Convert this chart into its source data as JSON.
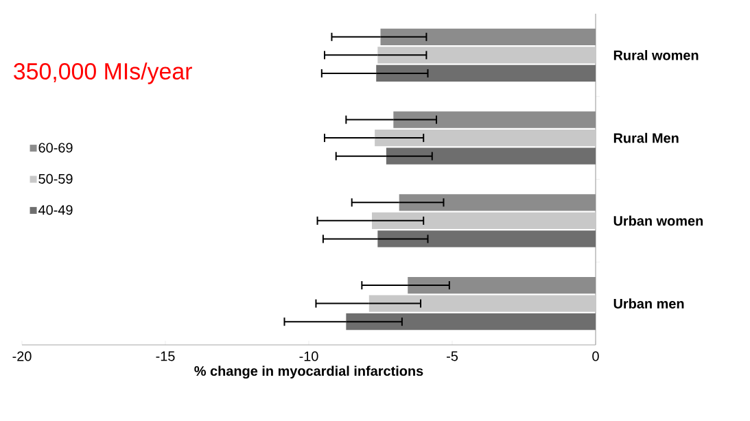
{
  "chart_data": {
    "type": "bar",
    "orientation": "horizontal",
    "categories": [
      "Rural women",
      "Rural Men",
      "Urban women",
      "Urban men"
    ],
    "series": [
      {
        "name": "60-69",
        "color": "#8c8c8c",
        "values": [
          -7.5,
          -7.05,
          -6.85,
          -6.55
        ],
        "errors": [
          [
            -9.2,
            -5.9
          ],
          [
            -8.7,
            -5.55
          ],
          [
            -8.5,
            -5.3
          ],
          [
            -8.15,
            -5.1
          ]
        ]
      },
      {
        "name": "50-59",
        "color": "#c8c8c8",
        "values": [
          -7.6,
          -7.7,
          -7.8,
          -7.9
        ],
        "errors": [
          [
            -9.45,
            -5.9
          ],
          [
            -9.45,
            -6.0
          ],
          [
            -9.7,
            -6.0
          ],
          [
            -9.75,
            -6.1
          ]
        ]
      },
      {
        "name": "40-49",
        "color": "#6e6e6e",
        "values": [
          -7.65,
          -7.3,
          -7.6,
          -8.7
        ],
        "errors": [
          [
            -9.55,
            -5.85
          ],
          [
            -9.05,
            -5.7
          ],
          [
            -9.5,
            -5.85
          ],
          [
            -10.85,
            -6.75
          ]
        ]
      }
    ],
    "xlabel": "% change in myocardial infarctions",
    "xlim": [
      -20,
      0
    ],
    "xticks": [
      -20,
      -15,
      -10,
      -5,
      0
    ],
    "legend": "left",
    "grid": false,
    "annotations": [
      "350,000 MIs/year"
    ]
  }
}
